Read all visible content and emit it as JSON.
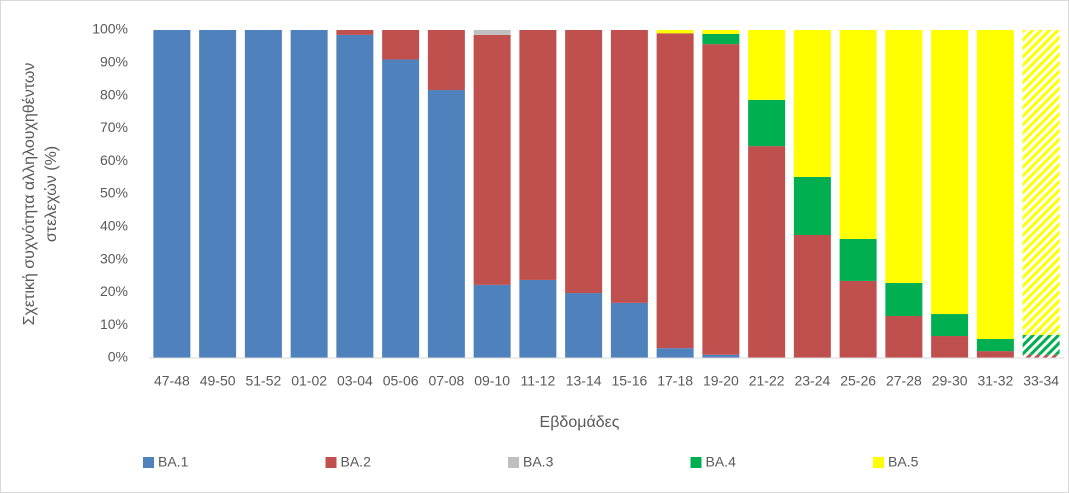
{
  "chart_data": {
    "type": "stacked_bar",
    "ylabel": [
      "Σχετική συχνότητα αλληλουχηθέντων",
      "στελεχών (%)"
    ],
    "xlabel": "Εβδομάδες",
    "categories": [
      "47-48",
      "49-50",
      "51-52",
      "01-02",
      "03-04",
      "05-06",
      "07-08",
      "09-10",
      "11-12",
      "13-14",
      "15-16",
      "17-18",
      "19-20",
      "21-22",
      "23-24",
      "25-26",
      "27-28",
      "29-30",
      "31-32",
      "33-34"
    ],
    "series": [
      {
        "name": "BA.1",
        "color": "#4f81bd",
        "values": [
          100,
          100,
          100,
          100,
          98.5,
          91,
          81.7,
          22.3,
          23.8,
          19.8,
          16.8,
          3,
          1,
          0,
          0,
          0,
          0,
          0,
          0,
          0
        ]
      },
      {
        "name": "BA.2",
        "color": "#c0504d",
        "values": [
          0,
          0,
          0,
          0,
          1.5,
          9,
          18.3,
          76.2,
          76.2,
          80.2,
          83.2,
          96,
          94.7,
          64.6,
          37.5,
          23.5,
          12.8,
          6.7,
          2.1,
          1
        ]
      },
      {
        "name": "BA.3",
        "color": "#bfbfbf",
        "values": [
          0,
          0,
          0,
          0,
          0,
          0,
          0,
          1.5,
          0,
          0,
          0,
          0,
          0,
          0,
          0,
          0,
          0,
          0,
          0,
          0
        ]
      },
      {
        "name": "BA.4",
        "color": "#00b050",
        "values": [
          0,
          0,
          0,
          0,
          0,
          0,
          0,
          0,
          0,
          0,
          0,
          0,
          3.1,
          14.1,
          17.7,
          12.8,
          10.1,
          6.7,
          3.7,
          6
        ]
      },
      {
        "name": "BA.5",
        "color": "#ffff00",
        "values": [
          0,
          0,
          0,
          0,
          0,
          0,
          0,
          0,
          0,
          0,
          0,
          1,
          1.2,
          21.3,
          44.8,
          63.7,
          77.1,
          86.6,
          94.2,
          93
        ]
      }
    ],
    "hatched_index": 19,
    "ylim": [
      0,
      100
    ],
    "yticks": [
      {
        "value": 0,
        "label": "0%"
      },
      {
        "value": 10,
        "label": "10%"
      },
      {
        "value": 20,
        "label": "20%"
      },
      {
        "value": 30,
        "label": "30%"
      },
      {
        "value": 40,
        "label": "40%"
      },
      {
        "value": 50,
        "label": "50%"
      },
      {
        "value": 60,
        "label": "60%"
      },
      {
        "value": 70,
        "label": "70%"
      },
      {
        "value": 80,
        "label": "80%"
      },
      {
        "value": 90,
        "label": "90%"
      },
      {
        "value": 100,
        "label": "100%"
      }
    ],
    "grid": false,
    "legend": "bottom"
  }
}
